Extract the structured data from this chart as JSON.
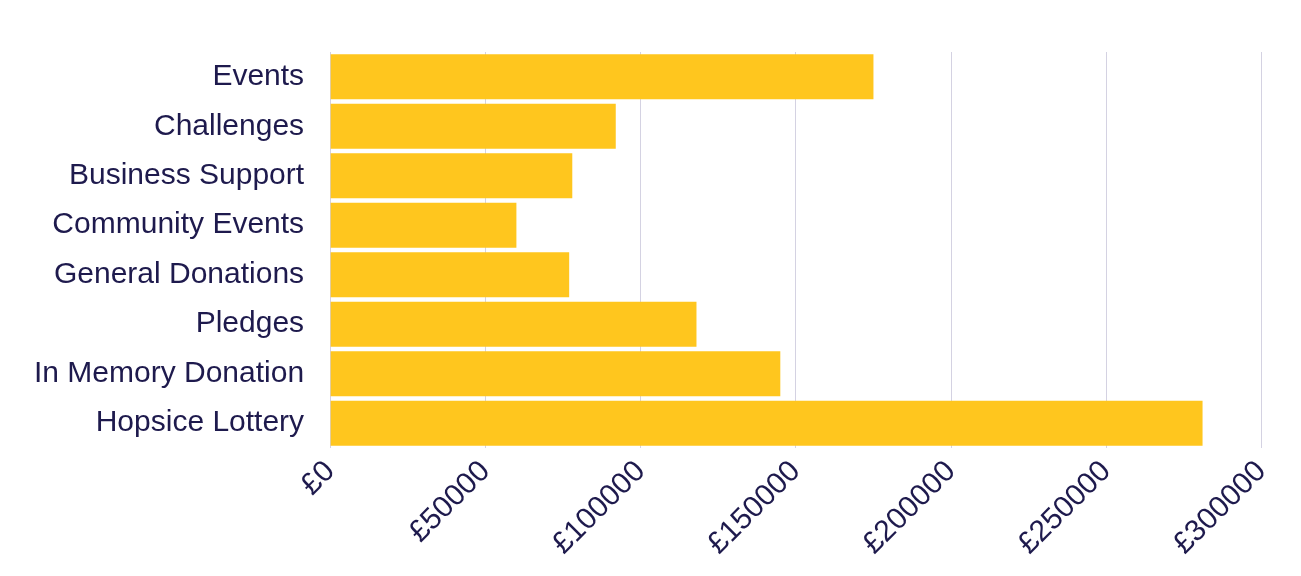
{
  "chart_data": {
    "type": "bar",
    "orientation": "horizontal",
    "categories": [
      "Events",
      "Challenges",
      "Business Support",
      "Community Events",
      "General Donations",
      "Pledges",
      "In Memory Donation",
      "Hopsice Lottery"
    ],
    "values": [
      175000,
      92000,
      78000,
      60000,
      77000,
      118000,
      145000,
      281000
    ],
    "color": "#ffc61e",
    "xlim": [
      0,
      300000
    ],
    "xticks": [
      {
        "value": 0,
        "label": "£0"
      },
      {
        "value": 50000,
        "label": "£50000"
      },
      {
        "value": 100000,
        "label": "£100000"
      },
      {
        "value": 150000,
        "label": "£150000"
      },
      {
        "value": 200000,
        "label": "£200000"
      },
      {
        "value": 250000,
        "label": "£250000"
      },
      {
        "value": 300000,
        "label": "£300000"
      }
    ],
    "grid": "x",
    "legend": false
  }
}
